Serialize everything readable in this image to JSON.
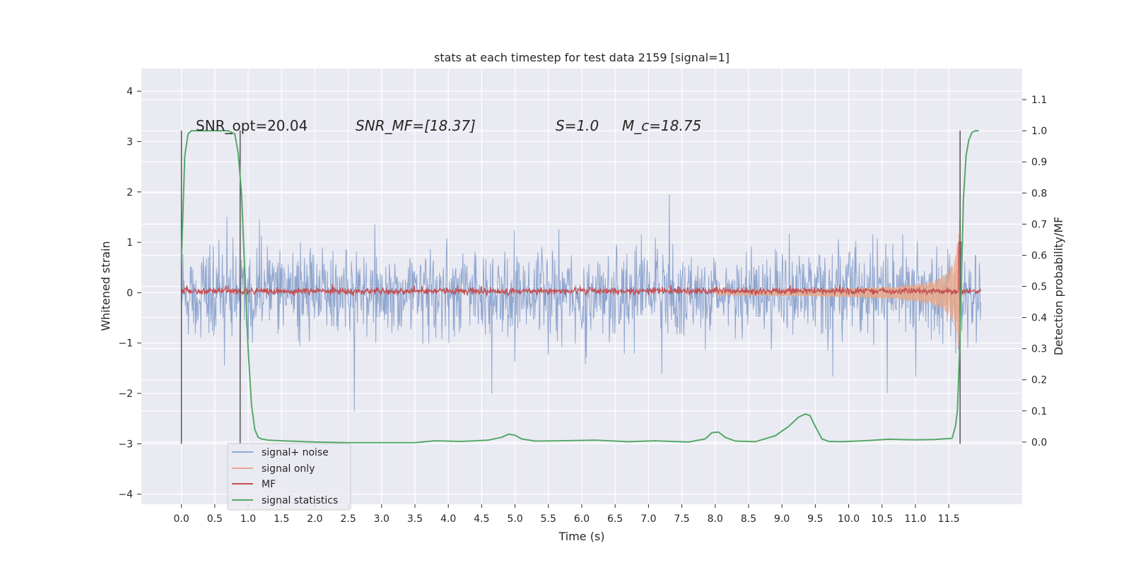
{
  "chart_data": {
    "type": "line",
    "title": "stats at each timestep for test data 2159 [signal=1]",
    "xlabel": "Time (s)",
    "ylabel": "Whitened strain",
    "ylabel_right": "Detection probability/MF",
    "xlim": [
      -0.6,
      12.6
    ],
    "ylim": [
      -4.2,
      4.45
    ],
    "ylim_right": [
      -0.2,
      1.2
    ],
    "x_ticks": [
      0.0,
      0.5,
      1.0,
      1.5,
      2.0,
      2.5,
      3.0,
      3.5,
      4.0,
      4.5,
      5.0,
      5.5,
      6.0,
      6.5,
      7.0,
      7.5,
      8.0,
      8.5,
      9.0,
      9.5,
      10.0,
      10.5,
      11.0,
      11.5
    ],
    "x_tick_labels": [
      "0.0",
      "0.5",
      "1.0",
      "1.5",
      "2.0",
      "2.5",
      "3.0",
      "3.5",
      "4.0",
      "4.5",
      "5.0",
      "5.5",
      "6.0",
      "6.5",
      "7.0",
      "7.5",
      "8.0",
      "8.5",
      "9.0",
      "9.5",
      "10.0",
      "10.5",
      "11.0",
      "11.5"
    ],
    "y_ticks": [
      4,
      3,
      2,
      1,
      0,
      -1,
      -2,
      -3,
      -4
    ],
    "y_tick_labels": [
      "4",
      "3",
      "2",
      "1",
      "0",
      "−1",
      "−2",
      "−3",
      "−4"
    ],
    "y_right_ticks": [
      1.1,
      1.0,
      0.9,
      0.8,
      0.7,
      0.6,
      0.5,
      0.4,
      0.3,
      0.2,
      0.1,
      0.0
    ],
    "y_right_tick_labels": [
      "1.1",
      "1.0",
      "0.9",
      "0.8",
      "0.7",
      "0.6",
      "0.5",
      "0.4",
      "0.3",
      "0.2",
      "0.1",
      "0.0"
    ],
    "grid": true,
    "legend_placement": "lower-left",
    "colors": {
      "background": "#eaeaf2",
      "grid": "#ffffff",
      "signal_noise": "#8fa6cf",
      "signal_only": "#dd8452",
      "mf": "#c44e52",
      "statistics": "#55a868",
      "vlines": "#555555"
    },
    "series": [
      {
        "name": "signal+ noise",
        "axis": "left"
      },
      {
        "name": "signal only",
        "axis": "left"
      },
      {
        "name": "MF",
        "axis": "left"
      },
      {
        "name": "signal statistics",
        "axis": "right",
        "x": [
          0.0,
          0.05,
          0.1,
          0.15,
          0.25,
          0.5,
          0.7,
          0.8,
          0.85,
          0.9,
          0.95,
          1.0,
          1.05,
          1.1,
          1.15,
          1.2,
          1.3,
          1.5,
          2.0,
          2.5,
          3.0,
          3.5,
          3.8,
          4.2,
          4.6,
          4.8,
          4.9,
          5.0,
          5.1,
          5.3,
          5.7,
          6.2,
          6.7,
          7.1,
          7.6,
          7.85,
          7.95,
          8.05,
          8.15,
          8.3,
          8.6,
          8.9,
          9.1,
          9.25,
          9.35,
          9.42,
          9.5,
          9.6,
          9.7,
          9.9,
          10.3,
          10.6,
          11.0,
          11.3,
          11.55,
          11.6,
          11.63,
          11.66,
          11.69,
          11.72,
          11.76,
          11.8,
          11.85,
          11.9,
          11.95
        ],
        "y": [
          0.58,
          0.92,
          0.99,
          1.0,
          1.0,
          1.0,
          1.0,
          0.99,
          0.93,
          0.8,
          0.55,
          0.3,
          0.12,
          0.04,
          0.015,
          0.01,
          0.006,
          0.004,
          0.0,
          -0.002,
          -0.002,
          -0.002,
          0.004,
          0.002,
          0.006,
          0.015,
          0.025,
          0.022,
          0.01,
          0.003,
          0.004,
          0.006,
          0.001,
          0.004,
          0.0,
          0.01,
          0.03,
          0.032,
          0.015,
          0.003,
          0.001,
          0.02,
          0.05,
          0.08,
          0.09,
          0.085,
          0.05,
          0.01,
          0.002,
          0.001,
          0.005,
          0.009,
          0.007,
          0.008,
          0.012,
          0.05,
          0.1,
          0.28,
          0.52,
          0.78,
          0.92,
          0.97,
          0.995,
          1.0,
          1.0
        ]
      }
    ],
    "vlines": [
      0.0,
      0.88,
      11.67
    ],
    "vline_range": [
      -3.0,
      3.22
    ],
    "annotations": [
      {
        "text": "SNR_opt=20.04",
        "x": 0.2,
        "y": 3.28
      },
      {
        "text": "SNR_MF=[18.37]",
        "x": 2.6,
        "y": 3.28
      },
      {
        "text": "S=1.0",
        "x": 5.6,
        "y": 3.28
      },
      {
        "text": "M_c=18.75",
        "x": 6.6,
        "y": 3.28
      }
    ]
  }
}
